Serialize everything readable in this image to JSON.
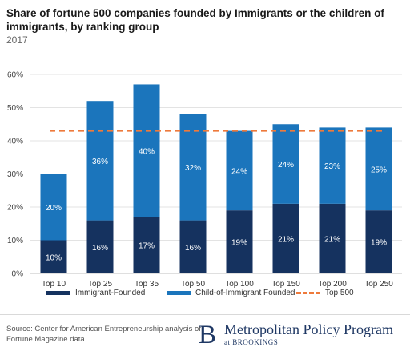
{
  "header": {
    "title": "Share of fortune 500 companies founded by Immigrants or the children of immigrants, by ranking group",
    "subtitle": "2017"
  },
  "chart_data": {
    "type": "bar",
    "stacked": true,
    "categories": [
      "Top 10",
      "Top 25",
      "Top 35",
      "Top 50",
      "Top 100",
      "Top 150",
      "Top 200",
      "Top 250"
    ],
    "series": [
      {
        "name": "Immigrant-Founded",
        "color": "#15325f",
        "values": [
          10,
          16,
          17,
          16,
          19,
          21,
          21,
          19
        ],
        "labels": [
          "10%",
          "16%",
          "17%",
          "16%",
          "19%",
          "21%",
          "21%",
          "19%"
        ]
      },
      {
        "name": "Child-of-Immigrant Founded",
        "color": "#1b75bc",
        "values": [
          20,
          36,
          40,
          32,
          24,
          24,
          23,
          25
        ],
        "labels": [
          "20%",
          "36%",
          "40%",
          "32%",
          "24%",
          "24%",
          "23%",
          "25%"
        ]
      }
    ],
    "reference_line": {
      "name": "Top 500",
      "value": 43,
      "color": "#ee7a3c",
      "style": "dashed"
    },
    "ylim": [
      0,
      60
    ],
    "yticks": [
      0,
      10,
      20,
      30,
      40,
      50,
      60
    ],
    "ytick_labels": [
      "0%",
      "10%",
      "20%",
      "30%",
      "40%",
      "50%",
      "60%"
    ],
    "grid": true,
    "legend_position": "bottom"
  },
  "legend": {
    "items": [
      "Immigrant-Founded",
      "Child-of-Immigrant Founded",
      "Top 500"
    ]
  },
  "footer": {
    "source": "Source: Center for American Entrepreneurship analysis of Fortune Magazine data",
    "brand_mark": "B",
    "brand_name": "Metropolitan Policy Program",
    "brand_sub": "at BROOKINGS"
  }
}
